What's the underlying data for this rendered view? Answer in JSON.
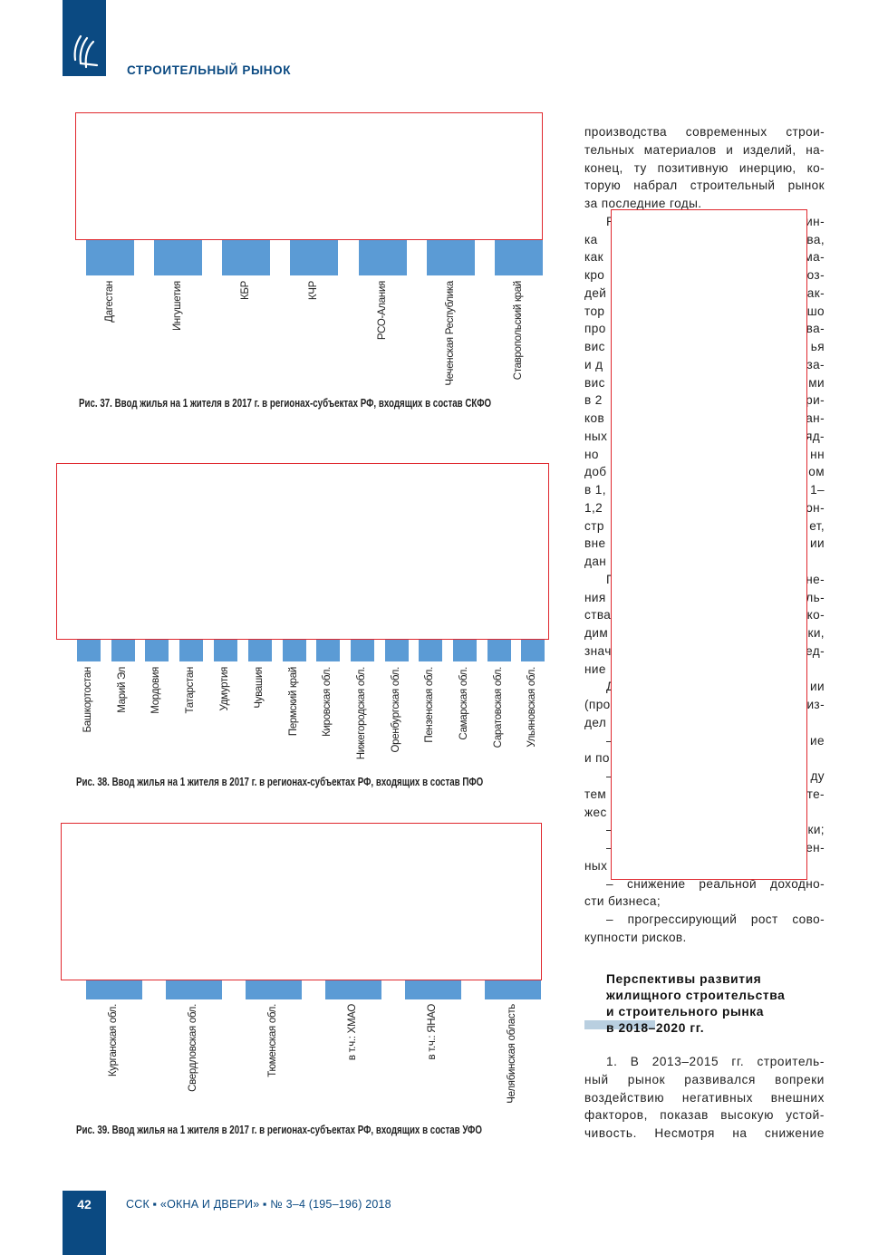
{
  "header": {
    "section_title": "СТРОИТЕЛЬНЫЙ РЫНОК",
    "logo": "publisher-logo"
  },
  "colors": {
    "brand": "#0b4a82",
    "bar": "#5b9bd5",
    "redaction": "#e0282e"
  },
  "figures": [
    {
      "caption": "Рис. 37. Ввод жилья на 1 жителя в 2017 г. в регионах-субъектах РФ, входящих в состав СКФО",
      "chart_data": {
        "type": "bar",
        "categories": [
          "Дагестан",
          "Ингушетия",
          "КБР",
          "КЧР",
          "РСО-Алания",
          "Чеченская Республика",
          "Ставропольский край"
        ]
      }
    },
    {
      "caption": "Рис. 38. Ввод жилья на 1 жителя в 2017 г. в регионах-субъектах РФ, входящих в состав ПФО",
      "chart_data": {
        "type": "bar",
        "categories": [
          "Башкортостан",
          "Марий Эл",
          "Мордовия",
          "Татарстан",
          "Удмуртия",
          "Чувашия",
          "Пермский край",
          "Кировская обл.",
          "Нижегородская обл.",
          "Оренбургская обл.",
          "Пензенская обл.",
          "Самарская обл.",
          "Саратовская обл.",
          "Ульяновская обл."
        ]
      }
    },
    {
      "caption": "Рис. 39. Ввод жилья на 1 жителя в 2017 г. в регионах-субъектах РФ, входящих в состав УФО",
      "chart_data": {
        "type": "bar",
        "categories": [
          "Курганская обл.",
          "Свердловская обл.",
          "Тюменская обл.",
          "в т.ч.: ХМАО",
          "в т.ч.: ЯНАО",
          "Челябинская область"
        ]
      }
    }
  ],
  "column_lines": [
    {
      "l": "производства современных строи-",
      "j": 1
    },
    {
      "l": "тельных материалов и изделий, на-",
      "j": 1
    },
    {
      "l": "конец, ту позитивную инерцию, ко-",
      "j": 1
    },
    {
      "l": "торую набрал строительный рынок",
      "j": 1
    },
    {
      "l": "за последние годы."
    },
    {
      "l": "Р",
      "r": "ин-",
      "i": 1
    },
    {
      "l": "ка",
      "r": "ва,"
    },
    {
      "l": "как",
      "r": "ма-"
    },
    {
      "l": "кро",
      "r": "оз-"
    },
    {
      "l": "дей",
      "r": "ак-"
    },
    {
      "l": "тор",
      "r": "шо"
    },
    {
      "l": "про",
      "r": "ва-"
    },
    {
      "l": "вис",
      "r": "ья"
    },
    {
      "l": "и д",
      "r": "за-"
    },
    {
      "l": "вис",
      "r": "ми"
    },
    {
      "l": "в 2",
      "r": "ри-"
    },
    {
      "l": "ков",
      "r": "ан-"
    },
    {
      "l": "ных",
      "r": "яд-"
    },
    {
      "l": "но",
      "r": "нн"
    },
    {
      "l": "доб",
      "r": "ом"
    },
    {
      "l": "в 1,",
      "r": "1–"
    },
    {
      "l": "1,2",
      "r": "он-"
    },
    {
      "l": "стр",
      "r": "ет,"
    },
    {
      "l": "вне",
      "r": "ии"
    },
    {
      "l": "дан"
    },
    {
      "l": "П",
      "r": "не-",
      "i": 1
    },
    {
      "l": "ния",
      "r": "ль-"
    },
    {
      "l": "ства",
      "r": "ко-"
    },
    {
      "l": "дим",
      "r": "ки,"
    },
    {
      "l": "знач",
      "r": "ед-"
    },
    {
      "l": "ние"
    },
    {
      "l": "Д",
      "r": "ии",
      "i": 1
    },
    {
      "l": "(про",
      "r": "из-"
    },
    {
      "l": "дел"
    },
    {
      "l": "–",
      "r": "ие",
      "i": 1
    },
    {
      "l": "и по"
    },
    {
      "l": "–",
      "r": "ду",
      "i": 1
    },
    {
      "l": "тем",
      "r": "те-"
    },
    {
      "l": "жес"
    },
    {
      "l": "–",
      "r": "ки;",
      "i": 1
    },
    {
      "l": "–",
      "r": "ен-",
      "i": 1
    },
    {
      "l": "ных"
    },
    {
      "l": "– снижение реальной доходно-",
      "j": 1,
      "i": 1
    },
    {
      "l": "сти бизнеса;"
    },
    {
      "l": "– прогрессирующий рост сово-",
      "j": 1,
      "i": 1
    },
    {
      "l": "купности рисков."
    }
  ],
  "heading": [
    "Перспективы развития",
    "жилищного строительства",
    "и строительного рынка",
    "в 2018–2020 гг."
  ],
  "para_lines": [
    {
      "l": "1. В 2013–2015 гг. строитель-",
      "j": 1,
      "i": 1
    },
    {
      "l": "ный рынок развивался вопреки",
      "j": 1
    },
    {
      "l": "воздействию негативных внешних",
      "j": 1
    },
    {
      "l": "факторов, показав высокую устой-",
      "j": 1
    },
    {
      "l": "чивость. Несмотря на снижение",
      "j": 1
    }
  ],
  "footer": {
    "page_number": "42",
    "publication": "ССК ▪ «ОКНА И ДВЕРИ» ▪ № 3–4 (195–196) 2018"
  }
}
